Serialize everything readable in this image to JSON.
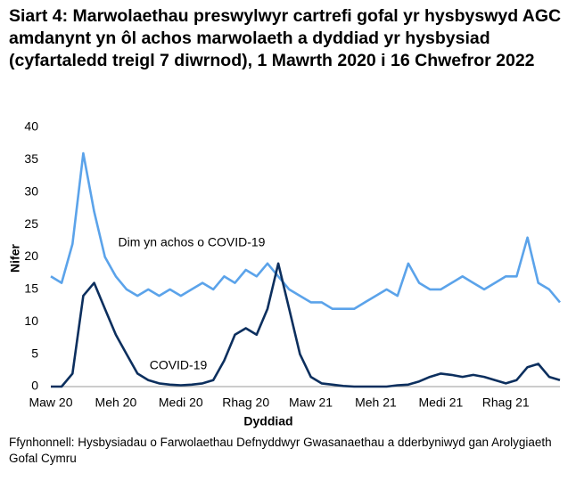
{
  "chart_data": {
    "type": "line",
    "title": "Siart 4: Marwolaethau preswylwyr cartrefi gofal yr hysbyswyd AGC amdanynt yn ôl achos marwolaeth a dyddiad yr hysbysiad (cyfartaledd treigl 7 diwrnod), 1 Mawrth 2020 i 16 Chwefror 2022",
    "x_label": "Dyddiad",
    "y_label": "Nifer",
    "source": "Ffynhonnell: Hysbysiadau o Farwolaethau Defnyddwyr Gwasanaethau a dderbyniwyd gan Arolygiaeth Gofal Cymru",
    "categories": [
      "Maw 20",
      null,
      null,
      null,
      null,
      null,
      "Meh 20",
      null,
      null,
      null,
      null,
      null,
      "Medi 20",
      null,
      null,
      null,
      null,
      null,
      "Rhag 20",
      null,
      null,
      null,
      null,
      null,
      "Maw 21",
      null,
      null,
      null,
      null,
      null,
      "Meh 21",
      null,
      null,
      null,
      null,
      null,
      "Medi 21",
      null,
      null,
      null,
      null,
      null,
      "Rhag 21",
      null,
      null,
      null,
      null,
      null
    ],
    "series": [
      {
        "name": "Dim yn achos o COVID-19",
        "color": "#5ba3ea",
        "values": [
          17,
          16,
          22,
          36,
          27,
          20,
          17,
          15,
          14,
          15,
          14,
          15,
          14,
          15,
          16,
          15,
          17,
          16,
          18,
          17,
          19,
          17,
          15,
          14,
          13,
          13,
          12,
          12,
          12,
          13,
          14,
          15,
          14,
          19,
          16,
          15,
          15,
          16,
          17,
          16,
          15,
          16,
          17,
          17,
          23,
          16,
          15,
          13
        ]
      },
      {
        "name": "COVID-19",
        "color": "#0c2f5e",
        "values": [
          0,
          0,
          2,
          14,
          16,
          12,
          8,
          5,
          2,
          1,
          0.5,
          0.3,
          0.2,
          0.3,
          0.5,
          1,
          4,
          8,
          9,
          8,
          12,
          19,
          12,
          5,
          1.5,
          0.5,
          0.3,
          0.1,
          0,
          0,
          0,
          0,
          0.2,
          0.3,
          0.8,
          1.5,
          2,
          1.8,
          1.5,
          1.8,
          1.5,
          1,
          0.5,
          1,
          3,
          3.5,
          1.5,
          1
        ]
      }
    ],
    "ylim": [
      0,
      40
    ],
    "yticks": [
      0,
      5,
      10,
      15,
      20,
      25,
      30,
      35,
      40
    ]
  }
}
